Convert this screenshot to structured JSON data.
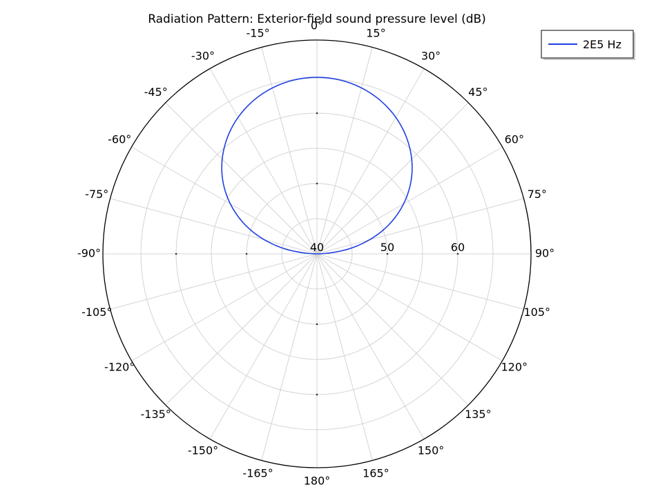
{
  "chart_data": {
    "type": "polar-line",
    "title": "Radiation Pattern: Exterior-field sound pressure level (dB)",
    "angle_ticks": [
      {
        "deg": 0,
        "label": "0°"
      },
      {
        "deg": 15,
        "label": "15°"
      },
      {
        "deg": 30,
        "label": "30°"
      },
      {
        "deg": 45,
        "label": "45°"
      },
      {
        "deg": 60,
        "label": "60°"
      },
      {
        "deg": 75,
        "label": "75°"
      },
      {
        "deg": 90,
        "label": "90°"
      },
      {
        "deg": 105,
        "label": "105°"
      },
      {
        "deg": 120,
        "label": "120°"
      },
      {
        "deg": 135,
        "label": "135°"
      },
      {
        "deg": 150,
        "label": "150°"
      },
      {
        "deg": 165,
        "label": "165°"
      },
      {
        "deg": 180,
        "label": "180°"
      },
      {
        "deg": -165,
        "label": "-165°"
      },
      {
        "deg": -150,
        "label": "-150°"
      },
      {
        "deg": -135,
        "label": "-135°"
      },
      {
        "deg": -120,
        "label": "-120°"
      },
      {
        "deg": -105,
        "label": "-105°"
      },
      {
        "deg": -90,
        "label": "-90°"
      },
      {
        "deg": -75,
        "label": "-75°"
      },
      {
        "deg": -60,
        "label": "-60°"
      },
      {
        "deg": -45,
        "label": "-45°"
      },
      {
        "deg": -30,
        "label": "-30°"
      },
      {
        "deg": -15,
        "label": "-15°"
      }
    ],
    "radial_axis": {
      "range": [
        40,
        70.4
      ],
      "ticks": [
        {
          "value": 40,
          "label": "40"
        },
        {
          "value": 50,
          "label": "50"
        },
        {
          "value": 60,
          "label": "60"
        }
      ],
      "minor_ticks": [
        45,
        55,
        65
      ]
    },
    "grid": true,
    "legend_placement": "top-right",
    "series": [
      {
        "name": "2E5 Hz",
        "color": "#1f3fe0",
        "angles_deg": [
          -90,
          -80,
          -70,
          -60,
          -50,
          -40,
          -30,
          -20,
          -10,
          0,
          10,
          20,
          30,
          40,
          50,
          60,
          70,
          80,
          90
        ],
        "values": [
          40.0,
          45.2,
          50.1,
          54.2,
          57.6,
          60.3,
          62.4,
          63.9,
          64.8,
          65.1,
          64.8,
          63.9,
          62.4,
          60.3,
          57.6,
          54.2,
          50.1,
          45.2,
          40.0
        ]
      }
    ]
  }
}
